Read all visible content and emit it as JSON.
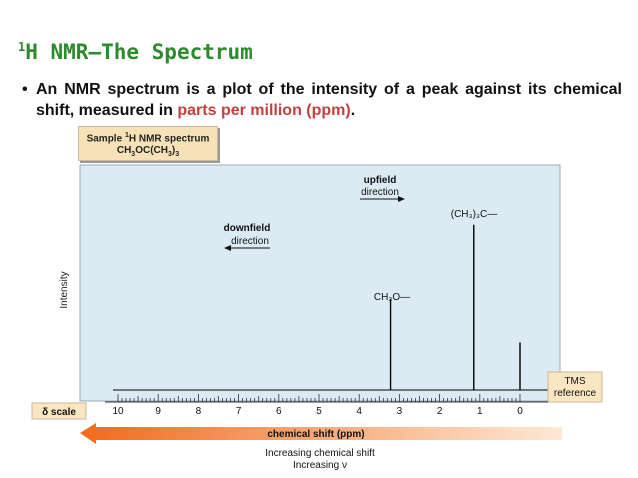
{
  "slide": {
    "title_sup": "1",
    "title": "H NMR—The Spectrum",
    "bullet_glyph": "•",
    "bullet_text_before": "An NMR spectrum is a plot of the intensity of a peak against its chemical shift, measured in ",
    "bullet_highlight": "parts per million (ppm)",
    "bullet_text_after": ".",
    "highlight_color": "#c24040",
    "title_color": "#2d8a2d"
  },
  "sample_box": {
    "line1_prefix": "Sample ",
    "line1_sup": "1",
    "line1_suffix": "H NMR spectrum",
    "line2_a": "CH",
    "line2_sub1": "3",
    "line2_b": "OC(CH",
    "line2_sub2": "3",
    "line2_c": ")",
    "line2_sub3": "3"
  },
  "chart_data": {
    "type": "line",
    "xlabel": "chemical shift (ppm)",
    "ylabel": "Intensity",
    "scale_label": "δ scale",
    "xlim": [
      10.5,
      -0.5
    ],
    "x_ticks": [
      "10",
      "9",
      "8",
      "7",
      "6",
      "5",
      "4",
      "3",
      "2",
      "1",
      "0"
    ],
    "grid": false,
    "peaks": [
      {
        "shift": 3.22,
        "rel_height": 0.48,
        "label": "CH₃O—"
      },
      {
        "shift": 1.15,
        "rel_height": 0.87,
        "label": "(CH₃)₃C—"
      },
      {
        "shift": 0.0,
        "rel_height": 0.25,
        "label": "TMS reference"
      }
    ],
    "annotations": {
      "upfield_1": "upfield",
      "upfield_2": "direction",
      "downfield_1": "downfield",
      "downfield_2": "direction",
      "tms_1": "TMS",
      "tms_2": "reference",
      "bottom_1": "Increasing chemical shift",
      "bottom_2": "Increasing ν"
    },
    "colors": {
      "plot_bg": "#dcebf3",
      "arrow_start": "#f26a1b",
      "arrow_end": "#fde9d6",
      "tms_box": "#fbe6c2"
    }
  }
}
